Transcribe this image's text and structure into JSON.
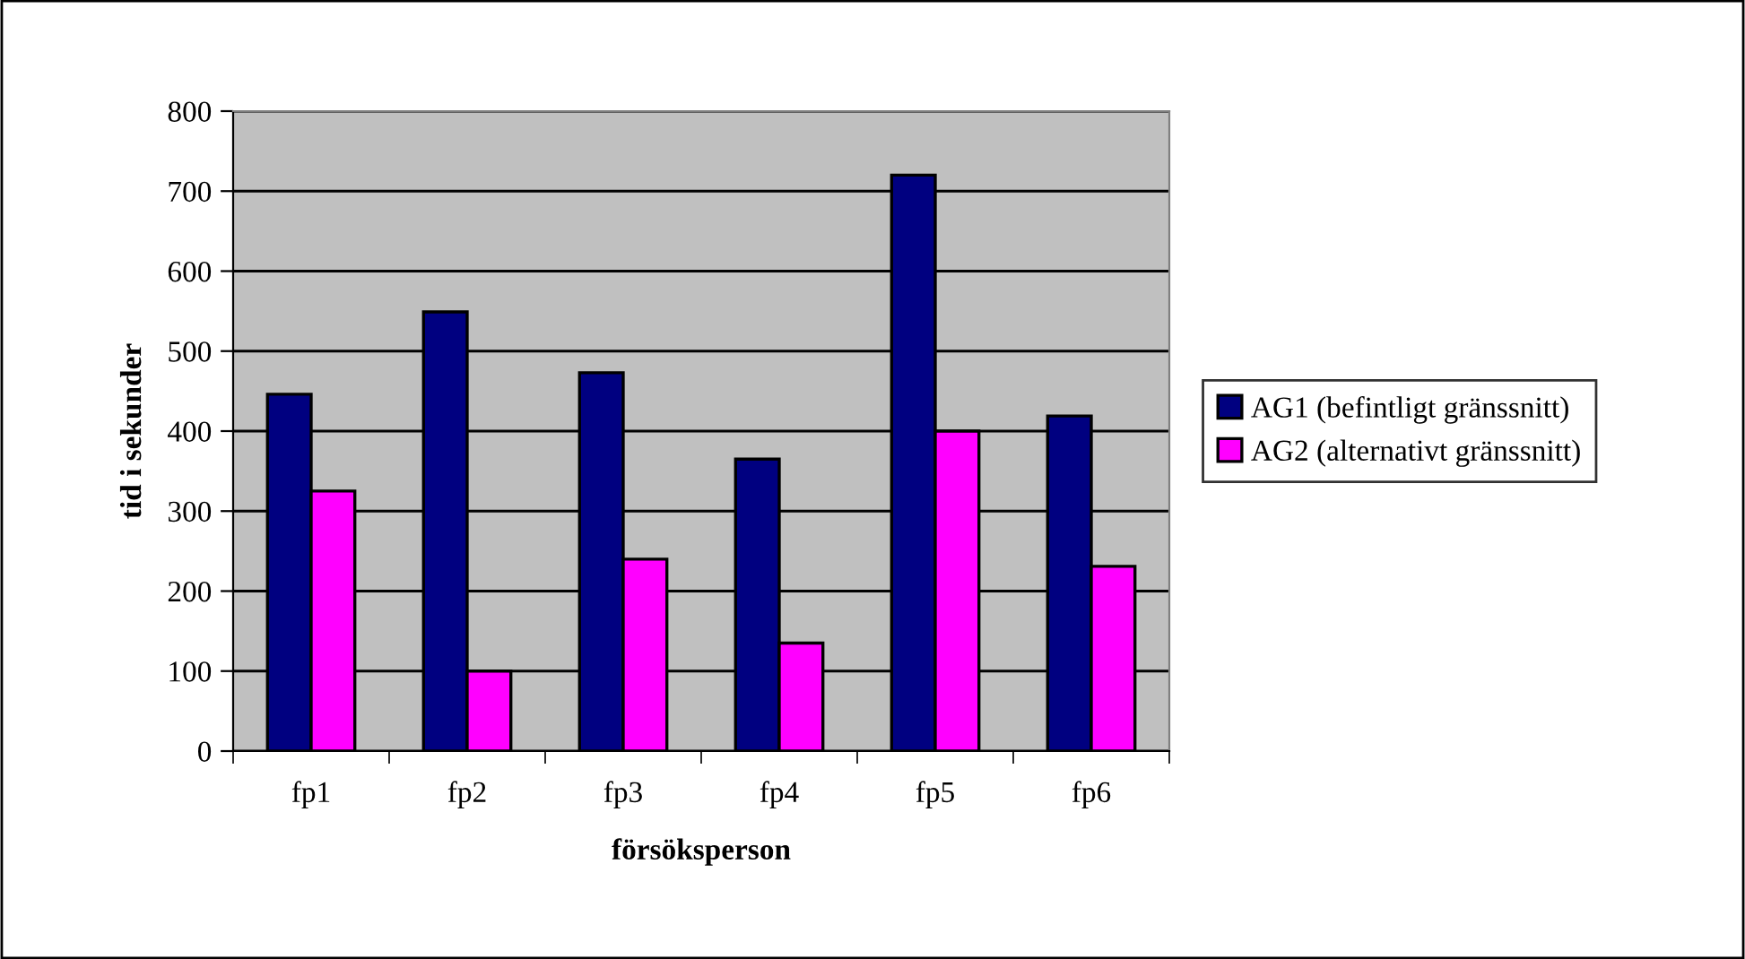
{
  "chart_data": {
    "type": "bar",
    "xlabel": "försöksperson",
    "ylabel": "tid i sekunder",
    "categories": [
      "fp1",
      "fp2",
      "fp3",
      "fp4",
      "fp5",
      "fp6"
    ],
    "series": [
      {
        "name": "AG1 (befintligt gränssnitt)",
        "color": "#000080",
        "values": [
          446,
          549,
          473,
          365,
          720,
          419
        ]
      },
      {
        "name": "AG2 (alternativt gränssnitt)",
        "color": "#ff00ff",
        "values": [
          325,
          100,
          240,
          135,
          400,
          231
        ]
      }
    ],
    "ylim": [
      0,
      800
    ],
    "yticks": [
      0,
      100,
      200,
      300,
      400,
      500,
      600,
      700,
      800
    ],
    "grid": "y",
    "legend": "right"
  }
}
